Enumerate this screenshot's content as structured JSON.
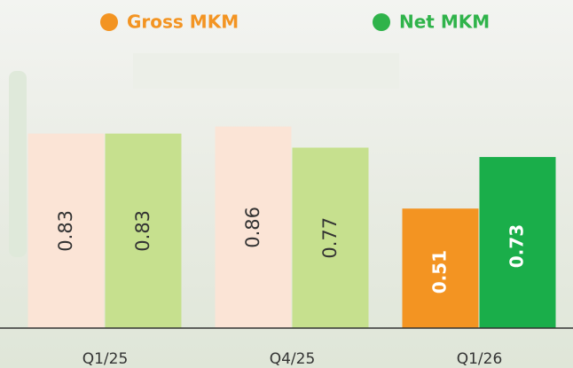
{
  "chart_data": {
    "type": "bar",
    "categories": [
      "Q1/25",
      "Q4/25",
      "Q1/26"
    ],
    "series": [
      {
        "name": "Gross MKM",
        "color": "#f39422",
        "colors": [
          "#fbe4d6",
          "#fbe4d6",
          "#f39422"
        ],
        "values": [
          0.83,
          0.86,
          0.51
        ]
      },
      {
        "name": "Net MKM",
        "color": "#2fb34a",
        "colors": [
          "#c6e08e",
          "#c6e08e",
          "#1aae4a"
        ],
        "values": [
          0.83,
          0.77,
          0.73
        ]
      }
    ],
    "ylim": [
      0,
      1.4
    ],
    "grid": false
  }
}
